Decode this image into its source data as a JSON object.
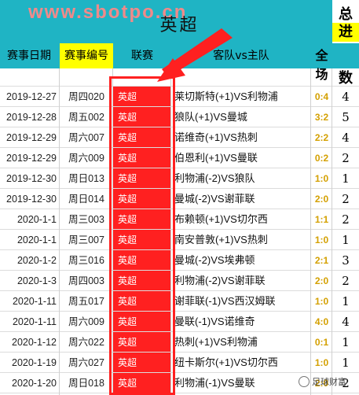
{
  "watermark": "www.sbotpo.cn",
  "title": "英超",
  "total_header": [
    "总",
    "进",
    "球",
    "数"
  ],
  "headers": {
    "date": "赛事日期",
    "code": "赛事编号",
    "league": "联赛",
    "match": "客队vs主队",
    "full_top": "全",
    "full_bottom": "场"
  },
  "rows": [
    {
      "date": "2019-12-27",
      "code": "周四020",
      "league": "英超",
      "match": "莱切斯特(+1)VS利物浦",
      "score": "0:4",
      "total": "4"
    },
    {
      "date": "2019-12-28",
      "code": "周五002",
      "league": "英超",
      "match": "狼队(+1)VS曼城",
      "score": "3:2",
      "total": "5"
    },
    {
      "date": "2019-12-29",
      "code": "周六007",
      "league": "英超",
      "match": "诺维奇(+1)VS热刺",
      "score": "2:2",
      "total": "4"
    },
    {
      "date": "2019-12-29",
      "code": "周六009",
      "league": "英超",
      "match": "伯恩利(+1)VS曼联",
      "score": "0:2",
      "total": "2"
    },
    {
      "date": "2019-12-30",
      "code": "周日013",
      "league": "英超",
      "match": "利物浦(-2)VS狼队",
      "score": "1:0",
      "total": "1"
    },
    {
      "date": "2019-12-30",
      "code": "周日014",
      "league": "英超",
      "match": "曼城(-2)VS谢菲联",
      "score": "2:0",
      "total": "2"
    },
    {
      "date": "2020-1-1",
      "code": "周三003",
      "league": "英超",
      "match": "布赖顿(+1)VS切尔西",
      "score": "1:1",
      "total": "2"
    },
    {
      "date": "2020-1-1",
      "code": "周三007",
      "league": "英超",
      "match": "南安普敦(+1)VS热刺",
      "score": "1:0",
      "total": "1"
    },
    {
      "date": "2020-1-2",
      "code": "周三016",
      "league": "英超",
      "match": "曼城(-2)VS埃弗顿",
      "score": "2:1",
      "total": "3"
    },
    {
      "date": "2020-1-3",
      "code": "周四003",
      "league": "英超",
      "match": "利物浦(-2)VS谢菲联",
      "score": "2:0",
      "total": "2"
    },
    {
      "date": "2020-1-11",
      "code": "周五017",
      "league": "英超",
      "match": "谢菲联(-1)VS西汉姆联",
      "score": "1:0",
      "total": "1"
    },
    {
      "date": "2020-1-11",
      "code": "周六009",
      "league": "英超",
      "match": "曼联(-1)VS诺维奇",
      "score": "4:0",
      "total": "4"
    },
    {
      "date": "2020-1-12",
      "code": "周六022",
      "league": "英超",
      "match": "热刺(+1)VS利物浦",
      "score": "0:1",
      "total": "1"
    },
    {
      "date": "2020-1-19",
      "code": "周六027",
      "league": "英超",
      "match": "纽卡斯尔(+1)VS切尔西",
      "score": "1:0",
      "total": "1"
    },
    {
      "date": "2020-1-20",
      "code": "周日018",
      "league": "英超",
      "match": "利物浦(-1)VS曼联",
      "score": "2:0",
      "total": "2"
    }
  ],
  "logo_text": "足球财富",
  "colors": {
    "header_bg": "#1fb4c4",
    "highlight_yellow": "#ffff00",
    "league_red": "#ff2020",
    "score_gold": "#d4a000"
  }
}
